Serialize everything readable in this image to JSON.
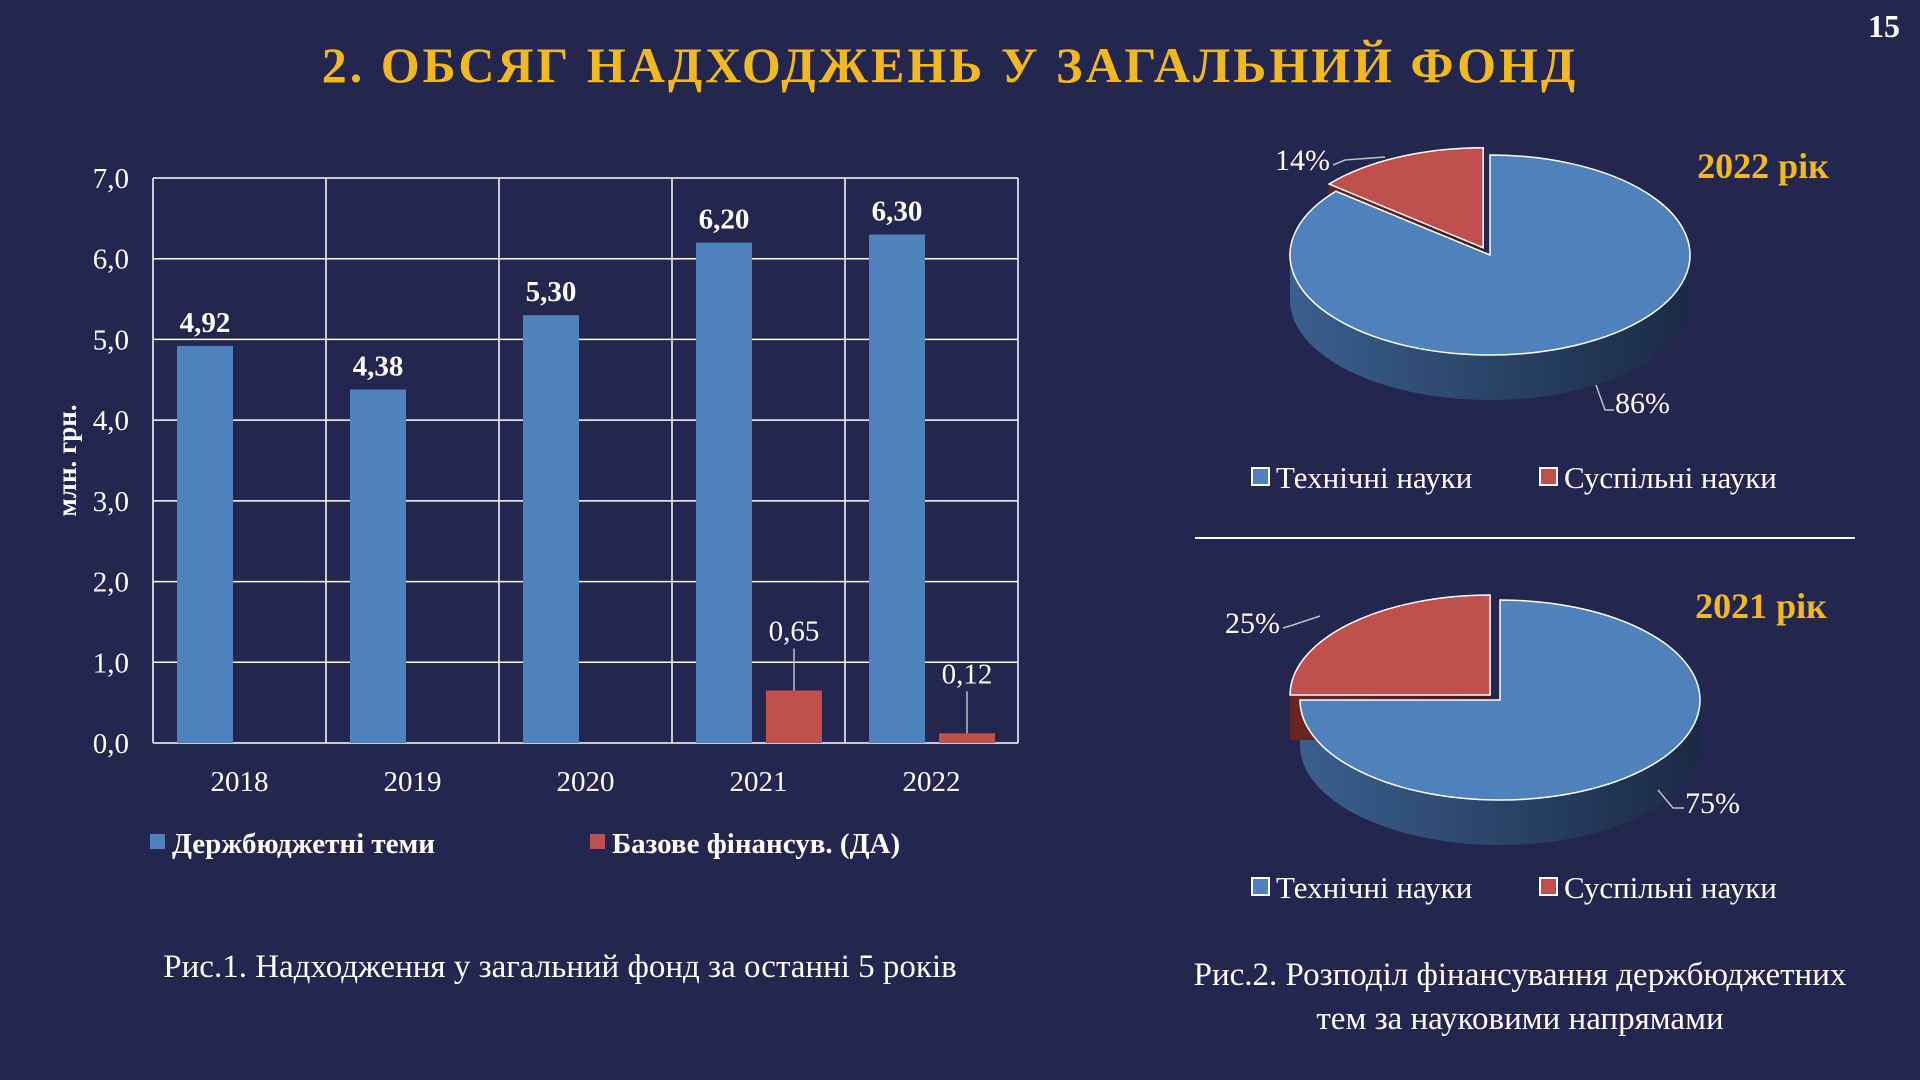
{
  "page_number": "15",
  "title": "2. ОБСЯГ НАДХОДЖЕНЬ У ЗАГАЛЬНИЙ ФОНД",
  "captions": {
    "fig1": "Рис.1. Надходження у загальний фонд за останні 5 років",
    "fig2_line1": "Рис.2. Розподіл фінансування держбюджетних",
    "fig2_line2": "тем за науковими напрямами"
  },
  "colors": {
    "background": "#23264f",
    "title": "#f2b81f",
    "blue": "#4f81bd",
    "red": "#c0504d"
  },
  "chart_data": [
    {
      "type": "bar",
      "ylabel": "млн. грн.",
      "ylim": [
        0,
        7
      ],
      "y_ticks": [
        "0,0",
        "1,0",
        "2,0",
        "3,0",
        "4,0",
        "5,0",
        "6,0",
        "7,0"
      ],
      "categories": [
        "2018",
        "2019",
        "2020",
        "2021",
        "2022"
      ],
      "grid": true,
      "legend_position": "bottom",
      "series": [
        {
          "name": "Держбюджетні теми",
          "color": "#4f81bd",
          "values": [
            4.92,
            4.38,
            5.3,
            6.2,
            6.3
          ],
          "labels": [
            "4,92",
            "4,38",
            "5,30",
            "6,20",
            "6,30"
          ]
        },
        {
          "name": "Базове фінансув. (ДА)",
          "color": "#c0504d",
          "values": [
            null,
            null,
            null,
            0.65,
            0.12
          ],
          "labels": [
            "",
            "",
            "",
            "0,65",
            "0,12"
          ]
        }
      ]
    },
    {
      "type": "pie",
      "title": "2022 рік",
      "legend_position": "bottom",
      "categories": [
        "Технічні науки",
        "Суспільні науки"
      ],
      "values": [
        86,
        14
      ],
      "labels": [
        "86%",
        "14%"
      ],
      "colors": [
        "#4f81bd",
        "#c0504d"
      ]
    },
    {
      "type": "pie",
      "title": "2021 рік",
      "legend_position": "bottom",
      "categories": [
        "Технічні науки",
        "Суспільні науки"
      ],
      "values": [
        75,
        25
      ],
      "labels": [
        "75%",
        "25%"
      ],
      "colors": [
        "#4f81bd",
        "#c0504d"
      ]
    }
  ]
}
